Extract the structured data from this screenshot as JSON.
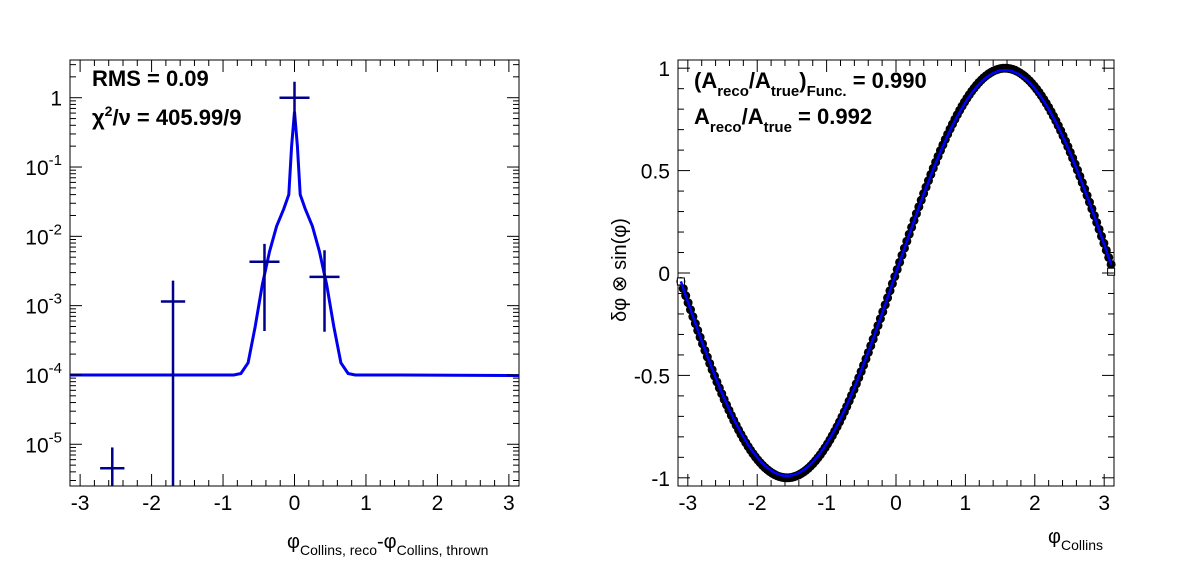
{
  "chart_data": [
    {
      "type": "scatter",
      "title": "",
      "xlabel": "φ_Collins, reco - φ_Collins, thrown",
      "xlabel_parts": {
        "phi1": "φ",
        "sub1": "Collins, reco",
        "dash": "-",
        "phi2": "φ",
        "sub2": "Collins, thrown"
      },
      "ylabel": "",
      "xlim": [
        -3.14159,
        3.14159
      ],
      "ylim": [
        2.5e-06,
        3.5
      ],
      "yscale": "log",
      "grid": false,
      "colors": {
        "data": "#00008b",
        "fit": "#0000ee"
      },
      "x_ticks": [
        {
          "v": -3,
          "label": "-3"
        },
        {
          "v": -2,
          "label": "-2"
        },
        {
          "v": -1,
          "label": "-1"
        },
        {
          "v": 0,
          "label": "0"
        },
        {
          "v": 1,
          "label": "1"
        },
        {
          "v": 2,
          "label": "2"
        },
        {
          "v": 3,
          "label": "3"
        }
      ],
      "y_ticks": [
        {
          "v": 1,
          "base": "1",
          "exp": ""
        },
        {
          "v": 0.1,
          "base": "10",
          "exp": "-1"
        },
        {
          "v": 0.01,
          "base": "10",
          "exp": "-2"
        },
        {
          "v": 0.001,
          "base": "10",
          "exp": "-3"
        },
        {
          "v": 0.0001,
          "base": "10",
          "exp": "-4"
        },
        {
          "v": 1e-05,
          "base": "10",
          "exp": "-5"
        }
      ],
      "points": [
        {
          "x": -2.55,
          "y": 4.5e-06,
          "xerr": 0.17,
          "ylo": 2.5e-06,
          "yhi": 9e-06
        },
        {
          "x": -1.7,
          "y": 0.00115,
          "xerr": 0.17,
          "ylo": 2.5e-06,
          "yhi": 0.0023
        },
        {
          "x": -0.42,
          "y": 0.0043,
          "xerr": 0.21,
          "ylo": 0.00043,
          "yhi": 0.0078
        },
        {
          "x": 0.0,
          "y": 1.0,
          "xerr": 0.21,
          "ylo": 0.4,
          "yhi": 1.7
        },
        {
          "x": 0.42,
          "y": 0.0026,
          "xerr": 0.21,
          "ylo": 0.00042,
          "yhi": 0.0063
        }
      ],
      "fit_curve": [
        [
          -3.14,
          0.0001
        ],
        [
          -1.5,
          0.0001
        ],
        [
          -0.85,
          0.0001
        ],
        [
          -0.75,
          0.000105
        ],
        [
          -0.65,
          0.00015
        ],
        [
          -0.55,
          0.0005
        ],
        [
          -0.45,
          0.002
        ],
        [
          -0.35,
          0.006
        ],
        [
          -0.25,
          0.014
        ],
        [
          -0.15,
          0.025
        ],
        [
          -0.08,
          0.04
        ],
        [
          -0.04,
          0.2
        ],
        [
          0.0,
          0.63
        ],
        [
          0.04,
          0.2
        ],
        [
          0.08,
          0.04
        ],
        [
          0.15,
          0.025
        ],
        [
          0.25,
          0.014
        ],
        [
          0.35,
          0.006
        ],
        [
          0.45,
          0.002
        ],
        [
          0.55,
          0.0005
        ],
        [
          0.65,
          0.00015
        ],
        [
          0.75,
          0.000105
        ],
        [
          0.85,
          0.0001
        ],
        [
          1.5,
          0.0001
        ],
        [
          3.14,
          9.8e-05
        ]
      ],
      "stats": {
        "rms_label": "RMS = 0.09",
        "chi_prefix": "χ",
        "chi_sup": "2",
        "chi_rest": "/ν = 405.99/9"
      }
    },
    {
      "type": "scatter",
      "title": "",
      "xlabel": "φ_Collins",
      "xlabel_parts": {
        "phi": "φ",
        "sub": "Collins"
      },
      "ylabel": "δφ ⊗ sin(φ)",
      "xlim": [
        -3.14159,
        3.14159
      ],
      "ylim": [
        -1.04,
        1.04
      ],
      "grid": false,
      "colors": {
        "data": "#000000",
        "fit": "#0000ff",
        "open_markers": "#000000"
      },
      "x_ticks": [
        {
          "v": -3,
          "label": "-3"
        },
        {
          "v": -2,
          "label": "-2"
        },
        {
          "v": -1,
          "label": "-1"
        },
        {
          "v": 0,
          "label": "0"
        },
        {
          "v": 1,
          "label": "1"
        },
        {
          "v": 2,
          "label": "2"
        },
        {
          "v": 3,
          "label": "3"
        }
      ],
      "y_ticks": [
        {
          "v": 1,
          "label": "1"
        },
        {
          "v": 0.5,
          "label": "0.5"
        },
        {
          "v": 0,
          "label": "0"
        },
        {
          "v": -0.5,
          "label": "-0.5"
        },
        {
          "v": -1,
          "label": "-1"
        }
      ],
      "series": [
        {
          "kind": "markers",
          "function": "sin(x)",
          "n_points": 180,
          "amplitude": 1.0,
          "x_range": [
            -3.1,
            3.1
          ]
        },
        {
          "kind": "fit",
          "function": "0.990*sin(x)",
          "amplitude": 0.99,
          "x_range": [
            -3.1,
            3.1
          ]
        }
      ],
      "stats": {
        "ratio_func": {
          "open": "(A",
          "sub1": "reco",
          "mid": "/A",
          "sub2": "true",
          "close": ")",
          "sub3": "Func.",
          "value": " = 0.990"
        },
        "ratio": {
          "a": "A",
          "sub1": "reco",
          "mid": "/A",
          "sub2": "true",
          "value": " = 0.992"
        }
      }
    }
  ]
}
